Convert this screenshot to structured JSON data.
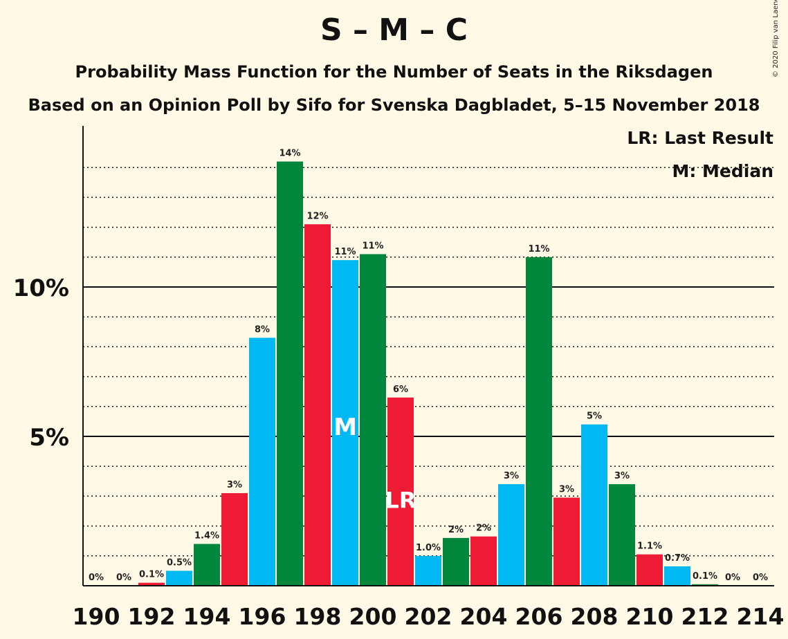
{
  "title": "S – M – C",
  "subtitle": "Probability Mass Function for the Number of Seats in the Riksdagen",
  "subtitle2": "Based on an Opinion Poll by Sifo for Svenska Dagbladet, 5–15 November 2018",
  "copyright": "© 2020 Filip van Laenen",
  "legend": {
    "last_result": "LR: Last Result",
    "median": "M: Median"
  },
  "colors": {
    "background": "#fff9e5",
    "red": "#ed1b34",
    "blue": "#00b9f2",
    "green": "#00873c"
  },
  "chart_data": {
    "type": "bar",
    "title": "S – M – C",
    "xlabel": "",
    "ylabel": "",
    "ylim": [
      0,
      15.5
    ],
    "y_ticks": [
      5,
      10
    ],
    "y_tick_labels": [
      "5%",
      "10%"
    ],
    "x_tick_labels": [
      "190",
      "192",
      "194",
      "196",
      "198",
      "200",
      "202",
      "204",
      "206",
      "208",
      "210",
      "212",
      "214"
    ],
    "x_ticks": [
      190,
      192,
      194,
      196,
      198,
      200,
      202,
      204,
      206,
      208,
      210,
      212,
      214
    ],
    "categories": [
      190,
      191,
      192,
      193,
      194,
      195,
      196,
      197,
      198,
      199,
      200,
      201,
      202,
      203,
      204,
      205,
      206,
      207,
      208,
      209,
      210,
      211,
      212,
      213,
      214
    ],
    "values": [
      0,
      0,
      0.1,
      0.5,
      1.4,
      3.1,
      8.3,
      14.2,
      12.1,
      10.9,
      11.1,
      6.3,
      1.0,
      1.6,
      1.65,
      3.4,
      11.0,
      2.95,
      5.4,
      3.4,
      1.05,
      0.65,
      0.05,
      0,
      0
    ],
    "labels": [
      "0%",
      "0%",
      "0.1%",
      "0.5%",
      "1.4%",
      "3%",
      "8%",
      "14%",
      "12%",
      "11%",
      "11%",
      "6%",
      "1.0%",
      "2%",
      "2%",
      "3%",
      "11%",
      "3%",
      "5%",
      "3%",
      "1.1%",
      "0.7%",
      "0.1%",
      "0%",
      "0%"
    ],
    "bar_colors": [
      "#ed1b34",
      "#00b9f2",
      "#ed1b34",
      "#00b9f2",
      "#00873c",
      "#ed1b34",
      "#00b9f2",
      "#00873c",
      "#ed1b34",
      "#00b9f2",
      "#00873c",
      "#ed1b34",
      "#00b9f2",
      "#00873c",
      "#ed1b34",
      "#00b9f2",
      "#00873c",
      "#ed1b34",
      "#00b9f2",
      "#00873c",
      "#ed1b34",
      "#00b9f2",
      "#00873c",
      "#ed1b34",
      "#00b9f2"
    ],
    "median": 199,
    "median_label": "M",
    "last_result": 201,
    "last_result_label": "LR",
    "grid": true,
    "legend_position": "top-right"
  }
}
